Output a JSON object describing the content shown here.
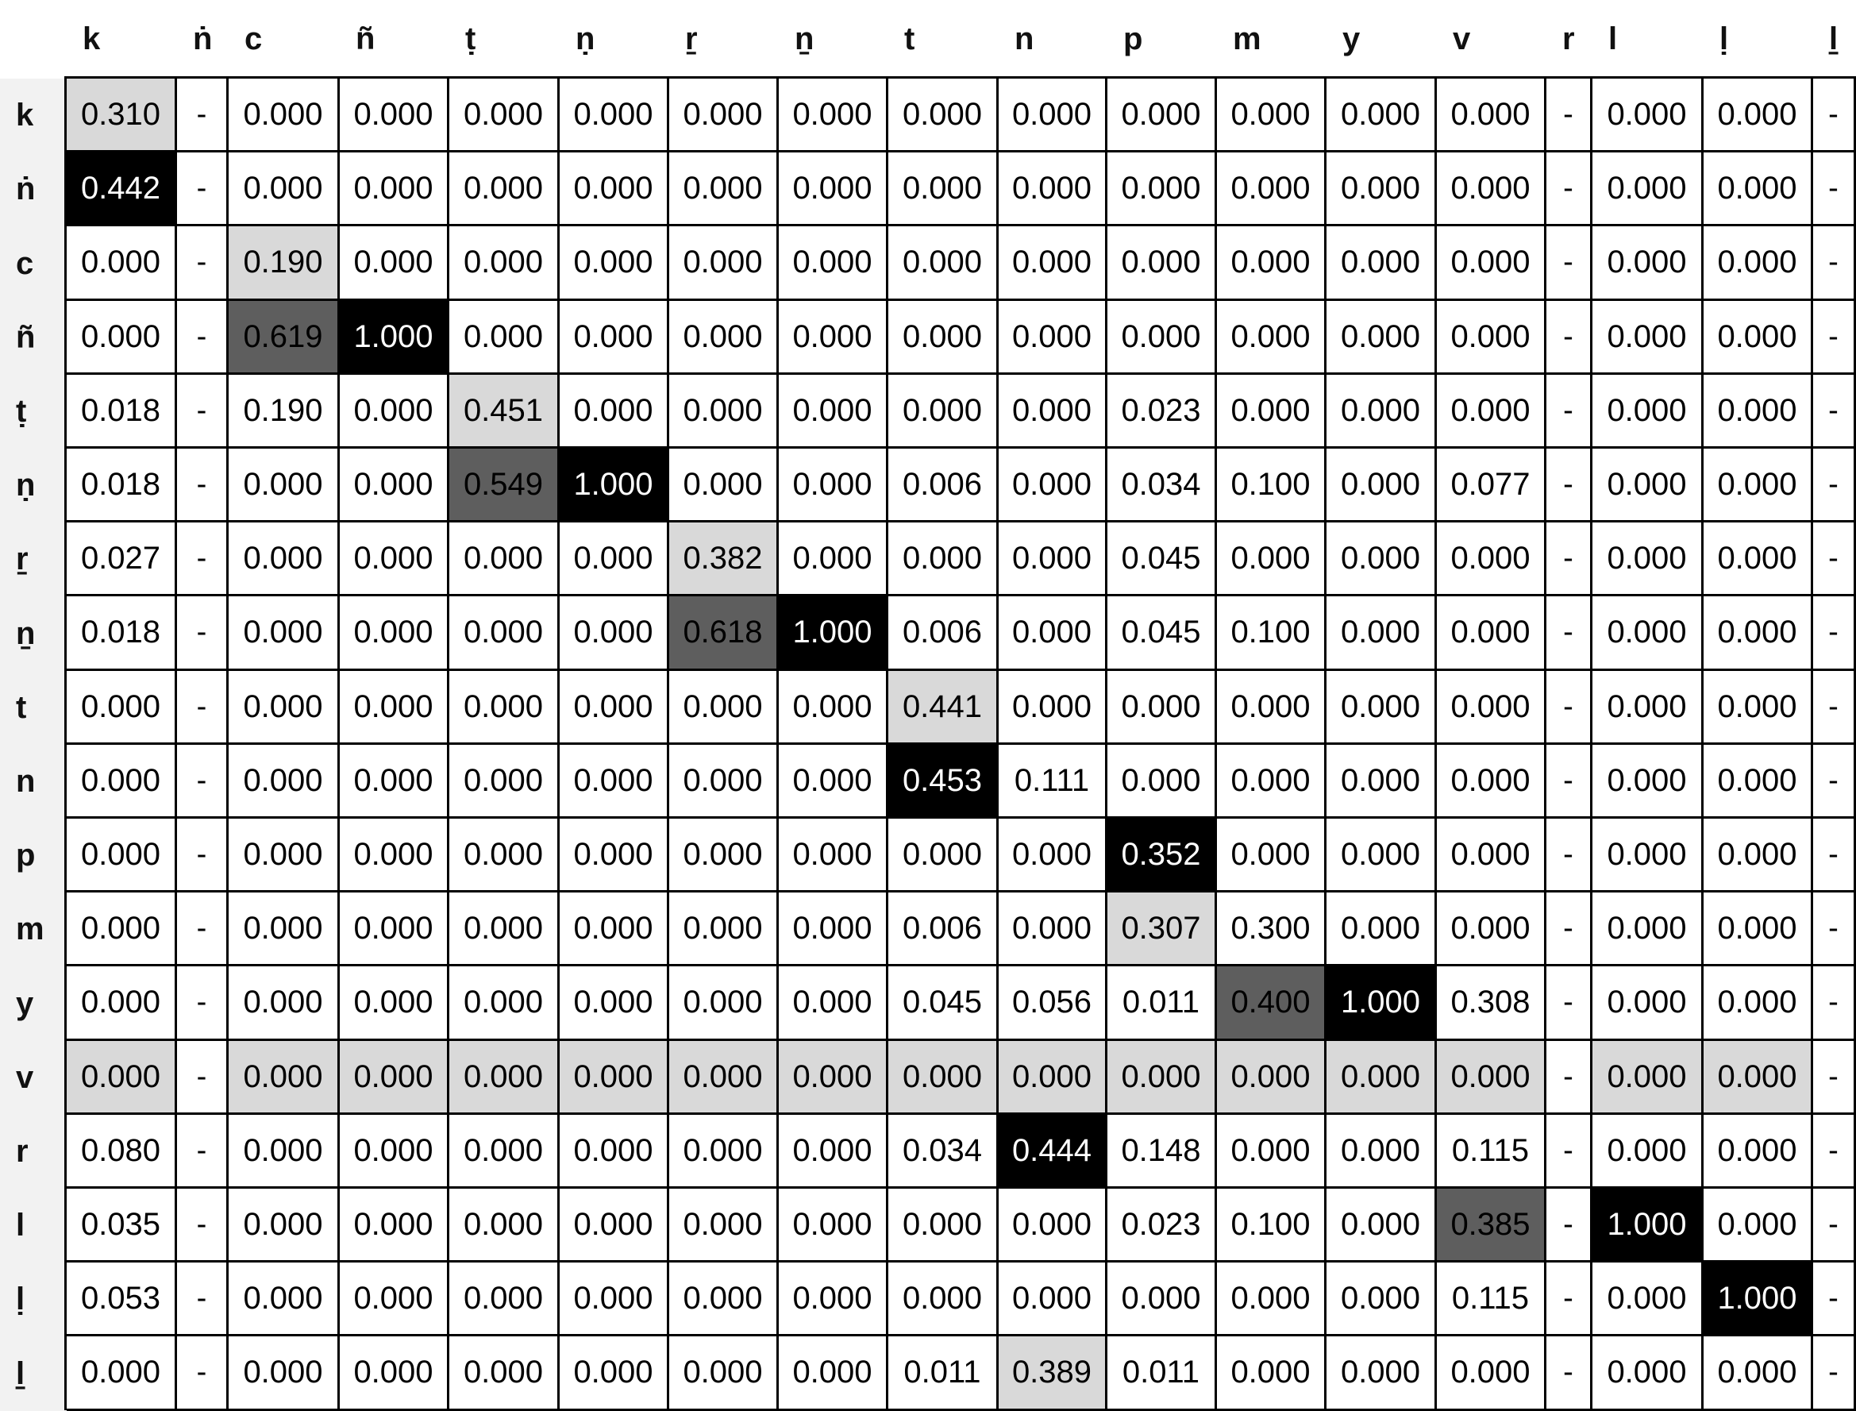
{
  "chart_data": {
    "type": "heatmap",
    "title": "",
    "xlabel": "",
    "ylabel": "",
    "colors": {
      "low": "#ffffff",
      "light": "#d9d9d9",
      "mid": "#5e5e5e",
      "high": "#000000",
      "text_light": "#ffffff",
      "text_dark": "#000000"
    },
    "columns": [
      "k",
      "ṅ",
      "c",
      "ñ",
      "ṭ",
      "ṇ",
      "ṟ",
      "ṉ",
      "t",
      "n",
      "p",
      "m",
      "y",
      "v",
      "r",
      "l",
      "ḷ",
      "ḻ"
    ],
    "rows": [
      {
        "label": "k",
        "values": [
          "0.310",
          "-",
          "0.000",
          "0.000",
          "0.000",
          "0.000",
          "0.000",
          "0.000",
          "0.000",
          "0.000",
          "0.000",
          "0.000",
          "0.000",
          "0.000",
          "-",
          "0.000",
          "0.000",
          "-"
        ]
      },
      {
        "label": "ṅ",
        "values": [
          "0.442",
          "-",
          "0.000",
          "0.000",
          "0.000",
          "0.000",
          "0.000",
          "0.000",
          "0.000",
          "0.000",
          "0.000",
          "0.000",
          "0.000",
          "0.000",
          "-",
          "0.000",
          "0.000",
          "-"
        ]
      },
      {
        "label": "c",
        "values": [
          "0.000",
          "-",
          "0.190",
          "0.000",
          "0.000",
          "0.000",
          "0.000",
          "0.000",
          "0.000",
          "0.000",
          "0.000",
          "0.000",
          "0.000",
          "0.000",
          "-",
          "0.000",
          "0.000",
          "-"
        ]
      },
      {
        "label": "ñ",
        "values": [
          "0.000",
          "-",
          "0.619",
          "1.000",
          "0.000",
          "0.000",
          "0.000",
          "0.000",
          "0.000",
          "0.000",
          "0.000",
          "0.000",
          "0.000",
          "0.000",
          "-",
          "0.000",
          "0.000",
          "-"
        ]
      },
      {
        "label": "ṭ",
        "values": [
          "0.018",
          "-",
          "0.190",
          "0.000",
          "0.451",
          "0.000",
          "0.000",
          "0.000",
          "0.000",
          "0.000",
          "0.023",
          "0.000",
          "0.000",
          "0.000",
          "-",
          "0.000",
          "0.000",
          "-"
        ]
      },
      {
        "label": "ṇ",
        "values": [
          "0.018",
          "-",
          "0.000",
          "0.000",
          "0.549",
          "1.000",
          "0.000",
          "0.000",
          "0.006",
          "0.000",
          "0.034",
          "0.100",
          "0.000",
          "0.077",
          "-",
          "0.000",
          "0.000",
          "-"
        ]
      },
      {
        "label": "ṟ",
        "values": [
          "0.027",
          "-",
          "0.000",
          "0.000",
          "0.000",
          "0.000",
          "0.382",
          "0.000",
          "0.000",
          "0.000",
          "0.045",
          "0.000",
          "0.000",
          "0.000",
          "-",
          "0.000",
          "0.000",
          "-"
        ]
      },
      {
        "label": "ṉ",
        "values": [
          "0.018",
          "-",
          "0.000",
          "0.000",
          "0.000",
          "0.000",
          "0.618",
          "1.000",
          "0.006",
          "0.000",
          "0.045",
          "0.100",
          "0.000",
          "0.000",
          "-",
          "0.000",
          "0.000",
          "-"
        ]
      },
      {
        "label": "t",
        "values": [
          "0.000",
          "-",
          "0.000",
          "0.000",
          "0.000",
          "0.000",
          "0.000",
          "0.000",
          "0.441",
          "0.000",
          "0.000",
          "0.000",
          "0.000",
          "0.000",
          "-",
          "0.000",
          "0.000",
          "-"
        ]
      },
      {
        "label": "n",
        "values": [
          "0.000",
          "-",
          "0.000",
          "0.000",
          "0.000",
          "0.000",
          "0.000",
          "0.000",
          "0.453",
          "0.111",
          "0.000",
          "0.000",
          "0.000",
          "0.000",
          "-",
          "0.000",
          "0.000",
          "-"
        ]
      },
      {
        "label": "p",
        "values": [
          "0.000",
          "-",
          "0.000",
          "0.000",
          "0.000",
          "0.000",
          "0.000",
          "0.000",
          "0.000",
          "0.000",
          "0.352",
          "0.000",
          "0.000",
          "0.000",
          "-",
          "0.000",
          "0.000",
          "-"
        ]
      },
      {
        "label": "m",
        "values": [
          "0.000",
          "-",
          "0.000",
          "0.000",
          "0.000",
          "0.000",
          "0.000",
          "0.000",
          "0.006",
          "0.000",
          "0.307",
          "0.300",
          "0.000",
          "0.000",
          "-",
          "0.000",
          "0.000",
          "-"
        ]
      },
      {
        "label": "y",
        "values": [
          "0.000",
          "-",
          "0.000",
          "0.000",
          "0.000",
          "0.000",
          "0.000",
          "0.000",
          "0.045",
          "0.056",
          "0.011",
          "0.400",
          "1.000",
          "0.308",
          "-",
          "0.000",
          "0.000",
          "-"
        ]
      },
      {
        "label": "v",
        "values": [
          "0.000",
          "-",
          "0.000",
          "0.000",
          "0.000",
          "0.000",
          "0.000",
          "0.000",
          "0.000",
          "0.000",
          "0.000",
          "0.000",
          "0.000",
          "0.000",
          "-",
          "0.000",
          "0.000",
          "-"
        ]
      },
      {
        "label": "r",
        "values": [
          "0.080",
          "-",
          "0.000",
          "0.000",
          "0.000",
          "0.000",
          "0.000",
          "0.000",
          "0.034",
          "0.444",
          "0.148",
          "0.000",
          "0.000",
          "0.115",
          "-",
          "0.000",
          "0.000",
          "-"
        ]
      },
      {
        "label": "l",
        "values": [
          "0.035",
          "-",
          "0.000",
          "0.000",
          "0.000",
          "0.000",
          "0.000",
          "0.000",
          "0.000",
          "0.000",
          "0.023",
          "0.100",
          "0.000",
          "0.385",
          "-",
          "1.000",
          "0.000",
          "-"
        ]
      },
      {
        "label": "ḷ",
        "values": [
          "0.053",
          "-",
          "0.000",
          "0.000",
          "0.000",
          "0.000",
          "0.000",
          "0.000",
          "0.000",
          "0.000",
          "0.000",
          "0.000",
          "0.000",
          "0.115",
          "-",
          "0.000",
          "1.000",
          "-"
        ]
      },
      {
        "label": "ḻ",
        "values": [
          "0.000",
          "-",
          "0.000",
          "0.000",
          "0.000",
          "0.000",
          "0.000",
          "0.000",
          "0.011",
          "0.389",
          "0.011",
          "0.000",
          "0.000",
          "0.000",
          "-",
          "0.000",
          "0.000",
          "-"
        ]
      }
    ],
    "shading": [
      {
        "row": 0,
        "col": 0,
        "level": "light"
      },
      {
        "row": 1,
        "col": 0,
        "level": "high"
      },
      {
        "row": 2,
        "col": 2,
        "level": "light"
      },
      {
        "row": 3,
        "col": 2,
        "level": "mid"
      },
      {
        "row": 3,
        "col": 3,
        "level": "high"
      },
      {
        "row": 4,
        "col": 4,
        "level": "light"
      },
      {
        "row": 5,
        "col": 4,
        "level": "mid"
      },
      {
        "row": 5,
        "col": 5,
        "level": "high"
      },
      {
        "row": 6,
        "col": 6,
        "level": "light"
      },
      {
        "row": 7,
        "col": 6,
        "level": "mid"
      },
      {
        "row": 7,
        "col": 7,
        "level": "high"
      },
      {
        "row": 8,
        "col": 8,
        "level": "light"
      },
      {
        "row": 9,
        "col": 8,
        "level": "high"
      },
      {
        "row": 10,
        "col": 10,
        "level": "high"
      },
      {
        "row": 11,
        "col": 10,
        "level": "light"
      },
      {
        "row": 12,
        "col": 11,
        "level": "mid"
      },
      {
        "row": 12,
        "col": 12,
        "level": "high"
      },
      {
        "row": 13,
        "col": 0,
        "level": "light"
      },
      {
        "row": 13,
        "col": 2,
        "level": "light"
      },
      {
        "row": 13,
        "col": 3,
        "level": "light"
      },
      {
        "row": 13,
        "col": 4,
        "level": "light"
      },
      {
        "row": 13,
        "col": 5,
        "level": "light"
      },
      {
        "row": 13,
        "col": 6,
        "level": "light"
      },
      {
        "row": 13,
        "col": 7,
        "level": "light"
      },
      {
        "row": 13,
        "col": 8,
        "level": "light"
      },
      {
        "row": 13,
        "col": 9,
        "level": "light"
      },
      {
        "row": 13,
        "col": 10,
        "level": "light"
      },
      {
        "row": 13,
        "col": 11,
        "level": "light"
      },
      {
        "row": 13,
        "col": 12,
        "level": "light"
      },
      {
        "row": 13,
        "col": 13,
        "level": "light"
      },
      {
        "row": 13,
        "col": 15,
        "level": "light"
      },
      {
        "row": 13,
        "col": 16,
        "level": "light"
      },
      {
        "row": 14,
        "col": 9,
        "level": "high"
      },
      {
        "row": 15,
        "col": 13,
        "level": "mid"
      },
      {
        "row": 15,
        "col": 15,
        "level": "high"
      },
      {
        "row": 16,
        "col": 16,
        "level": "high"
      },
      {
        "row": 17,
        "col": 9,
        "level": "light"
      }
    ]
  }
}
